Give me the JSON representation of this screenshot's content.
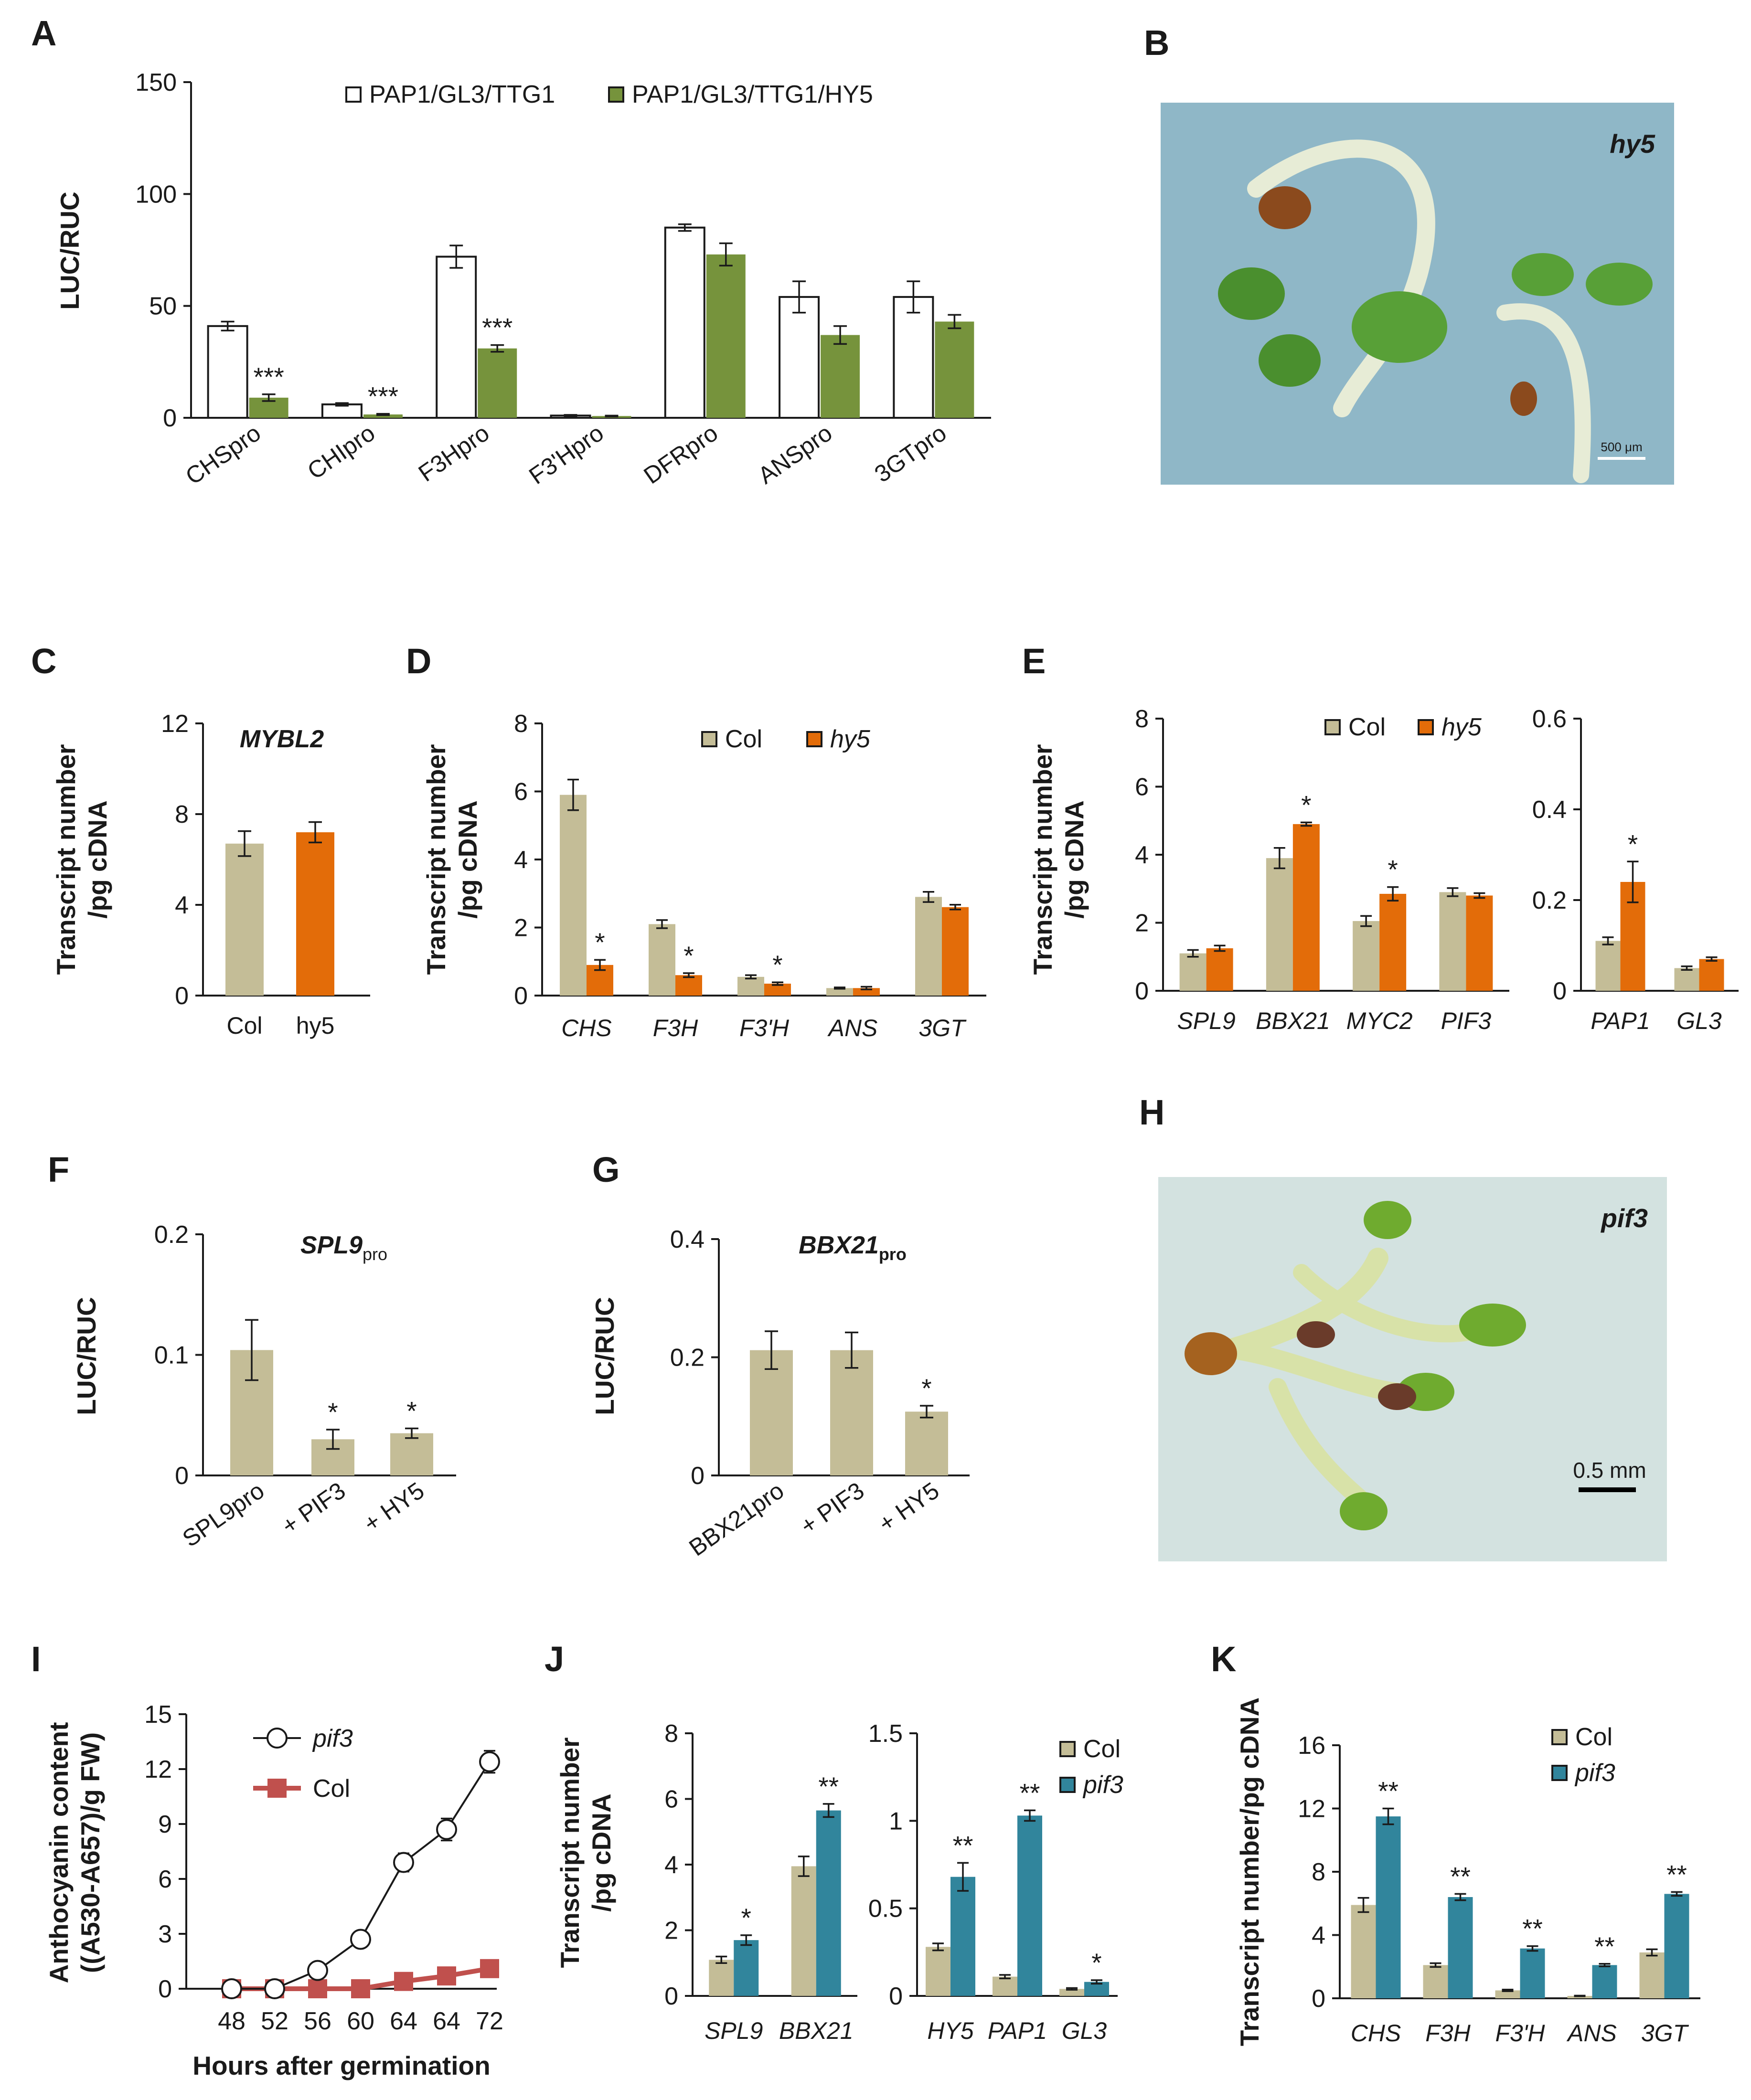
{
  "colors": {
    "white_bar": "#ffffff",
    "green": "#76933c",
    "tan": "#c4bd97",
    "orange": "#e36c09",
    "teal": "#31859c",
    "red": "#c0504d",
    "axis": "#1a1a1a"
  },
  "photos": [
    {
      "label": "B",
      "title": "hy5",
      "scale": "500 μm"
    },
    {
      "label": "H",
      "title": "pif3",
      "scale": "0.5 mm"
    }
  ],
  "chart_data": [
    {
      "label": "A",
      "type": "bar",
      "ylabel": "LUC/RUC",
      "ylim": [
        0,
        150
      ],
      "yticks": [
        "0",
        "50",
        "100",
        "150"
      ],
      "categories": [
        "CHSpro",
        "CHIpro",
        "F3Hpro",
        "F3'Hpro",
        "DFRpro",
        "ANSpro",
        "3GTpro"
      ],
      "series": [
        {
          "name": "PAP1/GL3/TTG1",
          "color": "white_bar",
          "values": [
            41,
            6,
            72,
            1,
            85,
            54,
            54
          ],
          "errors": [
            2,
            0.6,
            5,
            0.3,
            1.5,
            7,
            7
          ]
        },
        {
          "name": "PAP1/GL3/TTG1/HY5",
          "color": "green",
          "values": [
            9,
            1.5,
            31,
            0.8,
            73,
            37,
            43
          ],
          "errors": [
            1.5,
            0.3,
            1.5,
            0.2,
            5,
            4,
            3
          ]
        }
      ],
      "annotations": [
        "***",
        "***",
        "***",
        "",
        "",
        "",
        ""
      ]
    },
    {
      "label": "C",
      "type": "bar",
      "title": "MYBL2",
      "ylabel": [
        "Transcript number",
        "/pg cDNA"
      ],
      "ylim": [
        0,
        12
      ],
      "yticks": [
        "0",
        "4",
        "8",
        "12"
      ],
      "categories": [
        "Col",
        "hy5"
      ],
      "values": [
        6.7,
        7.2
      ],
      "errors": [
        0.55,
        0.45
      ],
      "colors": [
        "tan",
        "orange"
      ]
    },
    {
      "label": "D",
      "type": "bar",
      "ylabel": [
        "Transcript number",
        "/pg cDNA"
      ],
      "ylim": [
        0,
        8
      ],
      "yticks": [
        "0",
        "2",
        "4",
        "6",
        "8"
      ],
      "categories": [
        "CHS",
        "F3H",
        "F3'H",
        "ANS",
        "3GT"
      ],
      "series": [
        {
          "name": "Col",
          "color": "tan",
          "values": [
            5.9,
            2.1,
            0.55,
            0.22,
            2.9
          ],
          "errors": [
            0.45,
            0.12,
            0.05,
            0.02,
            0.15
          ]
        },
        {
          "name": "hy5",
          "color": "orange",
          "values": [
            0.9,
            0.6,
            0.35,
            0.22,
            2.6
          ],
          "errors": [
            0.15,
            0.06,
            0.04,
            0.04,
            0.07
          ]
        }
      ],
      "annotations": [
        "*",
        "*",
        "*",
        "",
        ""
      ]
    },
    {
      "label": "E",
      "type": "bar",
      "ylabel": [
        "Transcript number",
        "/pg cDNA"
      ],
      "legend": [
        "Col",
        "hy5"
      ],
      "panels": [
        {
          "ylim": [
            0,
            8
          ],
          "yticks": [
            "0",
            "2",
            "4",
            "6",
            "8"
          ],
          "categories": [
            "SPL9",
            "BBX21",
            "MYC2",
            "PIF3"
          ],
          "series": [
            {
              "name": "Col",
              "color": "tan",
              "values": [
                1.1,
                3.9,
                2.05,
                2.9
              ],
              "errors": [
                0.1,
                0.3,
                0.15,
                0.12
              ]
            },
            {
              "name": "hy5",
              "color": "orange",
              "values": [
                1.25,
                4.9,
                2.85,
                2.8
              ],
              "errors": [
                0.08,
                0.05,
                0.2,
                0.07
              ]
            }
          ],
          "annotations": [
            "",
            "*",
            "*",
            ""
          ]
        },
        {
          "ylim": [
            0,
            0.6
          ],
          "yticks": [
            "0",
            "0.2",
            "0.4",
            "0.6"
          ],
          "categories": [
            "PAP1",
            "GL3"
          ],
          "series": [
            {
              "name": "Col",
              "color": "tan",
              "values": [
                0.11,
                0.05
              ],
              "errors": [
                0.008,
                0.004
              ]
            },
            {
              "name": "hy5",
              "color": "orange",
              "values": [
                0.24,
                0.07
              ],
              "errors": [
                0.045,
                0.004
              ]
            }
          ],
          "annotations": [
            "*",
            ""
          ]
        }
      ]
    },
    {
      "label": "F",
      "type": "bar",
      "title": "SPL9",
      "title_sub": "pro",
      "ylabel": "LUC/RUC",
      "ylim": [
        0,
        0.2
      ],
      "yticks": [
        "0",
        "0.1",
        "0.2"
      ],
      "categories": [
        "SPL9pro",
        "+ PIF3",
        "+ HY5"
      ],
      "values": [
        0.104,
        0.03,
        0.035
      ],
      "errors": [
        0.025,
        0.008,
        0.004
      ],
      "color": "tan",
      "annotations": [
        "",
        "*",
        "*"
      ]
    },
    {
      "label": "G",
      "type": "bar",
      "title": "BBX21",
      "title_sub": "pro",
      "ylabel": "LUC/RUC",
      "ylim": [
        0,
        0.4
      ],
      "yticks": [
        "0",
        "0.2",
        "0.4"
      ],
      "categories": [
        "BBX21pro",
        "+ PIF3",
        "+ HY5"
      ],
      "values": [
        0.212,
        0.212,
        0.108
      ],
      "errors": [
        0.032,
        0.03,
        0.01
      ],
      "color": "tan",
      "annotations": [
        "",
        "",
        "*"
      ]
    },
    {
      "label": "I",
      "type": "line",
      "ylabel": [
        "Anthocyanin content",
        "((A530-A657)/g FW)"
      ],
      "xlabel": "Hours after germination",
      "ylim": [
        0,
        15
      ],
      "yticks": [
        "0",
        "3",
        "6",
        "9",
        "12",
        "15"
      ],
      "x": [
        "48",
        "52",
        "56",
        "60",
        "64",
        "64",
        "72"
      ],
      "series": [
        {
          "name": "pif3",
          "values": [
            0,
            0,
            1.0,
            2.7,
            6.9,
            8.7,
            12.4
          ],
          "errors": [
            0,
            0,
            0.1,
            0.2,
            0.5,
            0.6,
            0.6
          ]
        },
        {
          "name": "Col",
          "values": [
            0,
            0,
            0,
            0,
            0.4,
            0.7,
            1.1
          ],
          "errors": [
            0,
            0,
            0,
            0,
            0.1,
            0.1,
            0.15
          ]
        }
      ]
    },
    {
      "label": "J",
      "type": "bar",
      "ylabel": [
        "Transcript number",
        "/pg cDNA"
      ],
      "legend": [
        "Col",
        "pif3"
      ],
      "panels": [
        {
          "ylim": [
            0,
            8
          ],
          "yticks": [
            "0",
            "2",
            "4",
            "6",
            "8"
          ],
          "categories": [
            "SPL9",
            "BBX21"
          ],
          "series": [
            {
              "name": "Col",
              "color": "tan",
              "values": [
                1.1,
                3.95
              ],
              "errors": [
                0.1,
                0.3
              ]
            },
            {
              "name": "pif3",
              "color": "teal",
              "values": [
                1.7,
                5.65
              ],
              "errors": [
                0.15,
                0.2
              ]
            }
          ],
          "annotations": [
            "*",
            "**"
          ]
        },
        {
          "ylim": [
            0,
            1.5
          ],
          "yticks": [
            "0",
            "0.5",
            "1",
            "1.5"
          ],
          "categories": [
            "HY5",
            "PAP1",
            "GL3"
          ],
          "series": [
            {
              "name": "Col",
              "color": "tan",
              "values": [
                0.28,
                0.11,
                0.04
              ],
              "errors": [
                0.02,
                0.01,
                0.005
              ]
            },
            {
              "name": "pif3",
              "color": "teal",
              "values": [
                0.68,
                1.03,
                0.08
              ],
              "errors": [
                0.08,
                0.03,
                0.01
              ]
            }
          ],
          "annotations": [
            "**",
            "**",
            "*"
          ]
        }
      ]
    },
    {
      "label": "K",
      "type": "bar",
      "ylabel": "Transcript number/pg cDNA",
      "ylim": [
        0,
        16
      ],
      "yticks": [
        "0",
        "4",
        "8",
        "12",
        "16"
      ],
      "categories": [
        "CHS",
        "F3H",
        "F3'H",
        "ANS",
        "3GT"
      ],
      "series": [
        {
          "name": "Col",
          "color": "tan",
          "values": [
            5.9,
            2.1,
            0.5,
            0.15,
            2.9
          ],
          "errors": [
            0.45,
            0.12,
            0.05,
            0.02,
            0.2
          ]
        },
        {
          "name": "pif3",
          "color": "teal",
          "values": [
            11.5,
            6.4,
            3.15,
            2.1,
            6.6
          ],
          "errors": [
            0.5,
            0.2,
            0.15,
            0.08,
            0.12
          ]
        }
      ],
      "annotations": [
        "**",
        "**",
        "**",
        "**",
        "**"
      ]
    }
  ]
}
